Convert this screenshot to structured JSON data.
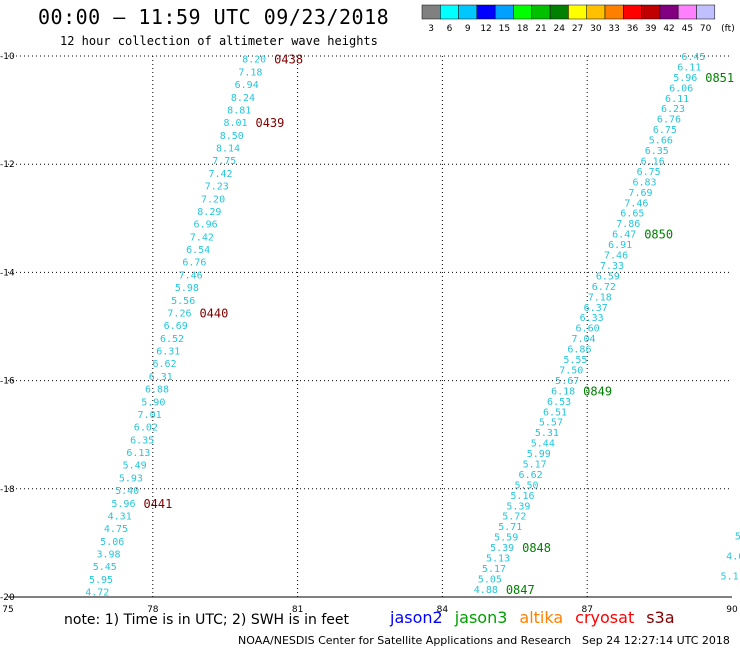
{
  "header": {
    "title": "00:00 – 11:59 UTC 09/23/2018",
    "subtitle": "12 hour collection of altimeter wave heights"
  },
  "scale": {
    "labels": [
      "3",
      "6",
      "9",
      "12",
      "15",
      "18",
      "21",
      "24",
      "27",
      "30",
      "33",
      "36",
      "39",
      "42",
      "45",
      "70",
      "(ft)"
    ],
    "colors": [
      "#808080",
      "#00ffff",
      "#00c8ff",
      "#0000ff",
      "#00a0ff",
      "#00ff00",
      "#00c000",
      "#008000",
      "#ffff00",
      "#ffc000",
      "#ff8000",
      "#ff0000",
      "#c00000",
      "#800080",
      "#ff80ff",
      "#c0c0ff",
      "#000000"
    ]
  },
  "map": {
    "lon_range": [
      75,
      90
    ],
    "lat_range": [
      -20,
      -10
    ],
    "lon_labels": [
      "75",
      "78",
      "81",
      "84",
      "87",
      "90"
    ],
    "lat_labels": [
      "-10",
      "-12",
      "-14",
      "-16",
      "-18",
      "-20"
    ],
    "grid": true
  },
  "tracks": [
    {
      "name": "left-track",
      "lat_start": -10.05,
      "lat_end": -19.9,
      "lon_start": 80.1,
      "lon_end": 76.85,
      "color": "#26c6da",
      "values": [
        "8.20",
        "7.18",
        "6.94",
        "8.24",
        "8.81",
        "8.01",
        "8.50",
        "8.14",
        "7.75",
        "7.42",
        "7.23",
        "7.20",
        "8.29",
        "6.96",
        "7.42",
        "6.54",
        "6.76",
        "7.46",
        "5.98",
        "5.56",
        "7.26",
        "6.69",
        "6.52",
        "6.31",
        "6.62",
        "6.31",
        "6.88",
        "5.90",
        "7.01",
        "6.02",
        "6.35",
        "6.13",
        "5.49",
        "5.93",
        "5.40",
        "5.96",
        "4.31",
        "4.75",
        "5.06",
        "3.98",
        "5.45",
        "5.95",
        "4.72"
      ],
      "times": [
        {
          "label": "0438",
          "index": 0
        },
        {
          "label": "0439",
          "index": 5
        },
        {
          "label": "0440",
          "index": 20
        },
        {
          "label": "0441",
          "index": 35
        }
      ],
      "time_color": "#800000"
    },
    {
      "name": "right-track",
      "lat_start": -10.0,
      "lat_end": -19.85,
      "lon_start": 89.2,
      "lon_end": 84.9,
      "color": "#26c6da",
      "values": [
        "6.45",
        "6.11",
        "5.96",
        "6.06",
        "6.11",
        "6.23",
        "6.76",
        "6.75",
        "5.66",
        "6.35",
        "6.16",
        "6.75",
        "6.83",
        "7.69",
        "7.46",
        "6.65",
        "7.86",
        "6.47",
        "6.91",
        "7.46",
        "7.33",
        "6.59",
        "6.72",
        "7.18",
        "6.37",
        "6.33",
        "6.60",
        "7.04",
        "6.86",
        "5.55",
        "7.50",
        "5.67",
        "6.18",
        "6.53",
        "6.51",
        "5.57",
        "5.31",
        "5.44",
        "5.99",
        "5.17",
        "6.62",
        "5.50",
        "5.16",
        "5.39",
        "5.72",
        "5.71",
        "5.59",
        "5.39",
        "5.13",
        "5.17",
        "5.05",
        "4.88"
      ],
      "times": [
        {
          "label": "0851",
          "index": 2
        },
        {
          "label": "0850",
          "index": 17
        },
        {
          "label": "0849",
          "index": 32
        },
        {
          "label": "0848",
          "index": 47
        },
        {
          "label": "0847",
          "index": 51
        }
      ],
      "time_color": "#008000"
    },
    {
      "name": "edge-track",
      "lat_start": -18.5,
      "lat_end": -19.6,
      "lon_start": 90.3,
      "lon_end": 89.95,
      "color": "#26c6da",
      "values": [
        "5.",
        "5.",
        "4.6",
        "5.1"
      ],
      "times": [],
      "time_color": "#008000"
    }
  ],
  "note": "note: 1) Time is in UTC; 2) SWH is in feet",
  "satellites": [
    {
      "name": "jason2",
      "color": "#0000ff"
    },
    {
      "name": "jason3",
      "color": "#00a000"
    },
    {
      "name": "altika",
      "color": "#ff8000"
    },
    {
      "name": "cryosat",
      "color": "#ff0000"
    },
    {
      "name": "s3a",
      "color": "#800000"
    }
  ],
  "footer": {
    "left": "NOAA/NESDIS Center for Satellite Applications and Research",
    "right": "Sep 24 12:27:14 UTC 2018"
  }
}
